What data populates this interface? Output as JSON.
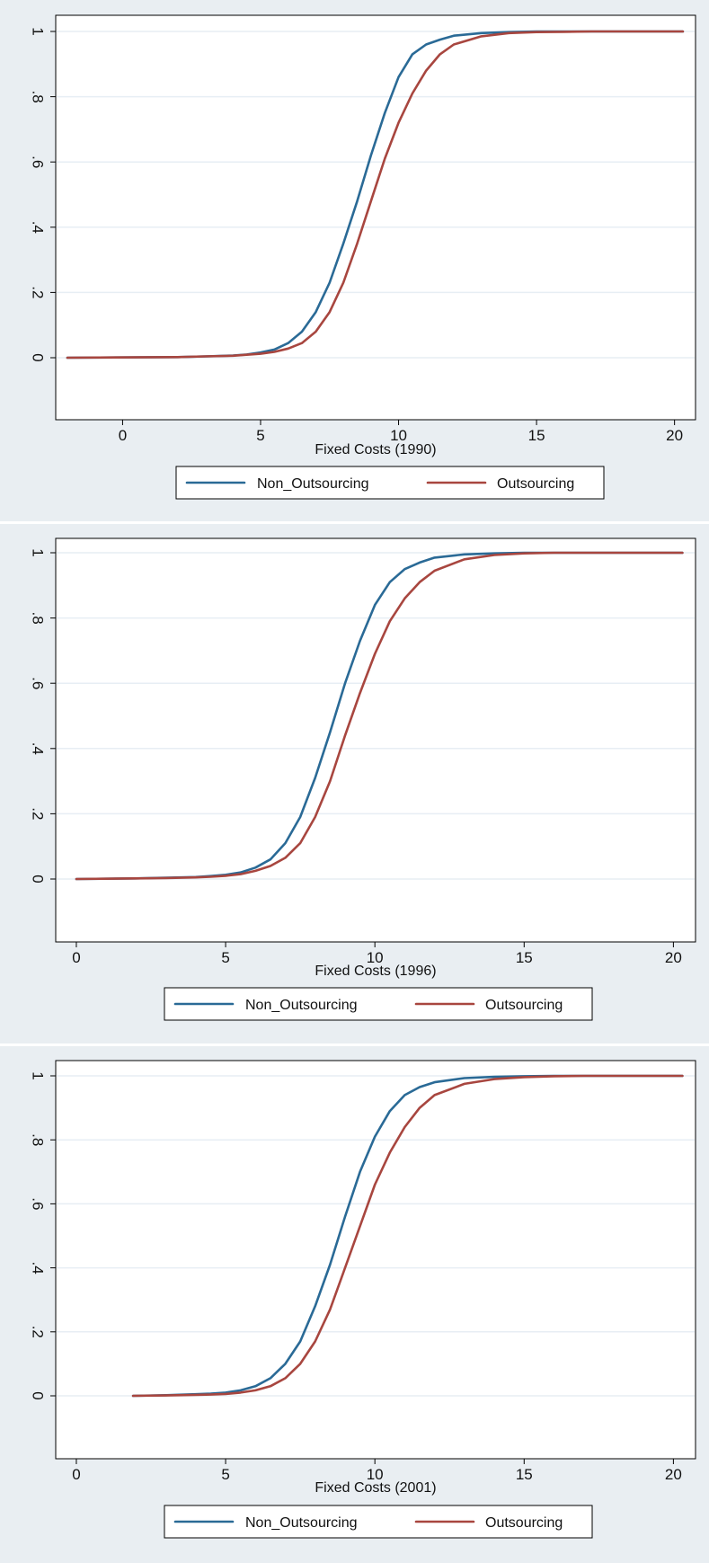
{
  "chart_data": [
    {
      "type": "line",
      "xlabel": "Fixed Costs (1990)",
      "ylabel": "",
      "xlim": [
        -2,
        20.5
      ],
      "ylim": [
        0,
        1
      ],
      "xticks": [
        0,
        5,
        10,
        15,
        20
      ],
      "yticks": [
        0,
        0.2,
        0.4,
        0.6,
        0.8,
        1
      ],
      "ytick_labels": [
        "0",
        ".2",
        ".4",
        ".6",
        ".8",
        "1"
      ],
      "grid": true,
      "legend_position": "bottom",
      "series": [
        {
          "name": "Non_Outsourcing",
          "color": "#2a6a96",
          "x": [
            -2,
            2,
            3,
            4,
            4.5,
            5,
            5.5,
            6,
            6.5,
            7,
            7.5,
            8,
            8.5,
            9,
            9.5,
            10,
            10.5,
            11,
            11.5,
            12,
            13,
            14,
            15,
            20.3
          ],
          "y": [
            0,
            0.002,
            0.004,
            0.007,
            0.01,
            0.016,
            0.025,
            0.045,
            0.08,
            0.14,
            0.23,
            0.35,
            0.48,
            0.62,
            0.75,
            0.86,
            0.93,
            0.96,
            0.975,
            0.987,
            0.995,
            0.998,
            1,
            1
          ]
        },
        {
          "name": "Outsourcing",
          "color": "#a8463f",
          "x": [
            -2,
            2,
            3,
            4,
            4.5,
            5,
            5.5,
            6,
            6.5,
            7,
            7.5,
            8,
            8.5,
            9,
            9.5,
            10,
            10.5,
            11,
            11.5,
            12,
            13,
            14,
            15,
            16,
            17,
            20.3
          ],
          "y": [
            0,
            0.002,
            0.004,
            0.006,
            0.009,
            0.012,
            0.018,
            0.028,
            0.045,
            0.08,
            0.14,
            0.23,
            0.35,
            0.48,
            0.61,
            0.72,
            0.81,
            0.88,
            0.93,
            0.96,
            0.985,
            0.995,
            0.998,
            0.999,
            1,
            1
          ]
        }
      ]
    },
    {
      "type": "line",
      "xlabel": "Fixed Costs (1996)",
      "ylabel": "",
      "xlim": [
        -0.3,
        20.5
      ],
      "ylim": [
        0,
        1
      ],
      "xticks": [
        0,
        5,
        10,
        15,
        20
      ],
      "yticks": [
        0,
        0.2,
        0.4,
        0.6,
        0.8,
        1
      ],
      "ytick_labels": [
        "0",
        ".2",
        ".4",
        ".6",
        ".8",
        "1"
      ],
      "grid": true,
      "legend_position": "bottom",
      "series": [
        {
          "name": "Non_Outsourcing",
          "color": "#2a6a96",
          "x": [
            0,
            2,
            3,
            4,
            4.5,
            5,
            5.5,
            6,
            6.5,
            7,
            7.5,
            8,
            8.5,
            9,
            9.5,
            10,
            10.5,
            11,
            11.5,
            12,
            13,
            14,
            15,
            20.3
          ],
          "y": [
            0,
            0.002,
            0.004,
            0.006,
            0.009,
            0.013,
            0.02,
            0.035,
            0.06,
            0.11,
            0.19,
            0.31,
            0.45,
            0.6,
            0.73,
            0.84,
            0.91,
            0.95,
            0.97,
            0.985,
            0.995,
            0.998,
            1,
            1
          ]
        },
        {
          "name": "Outsourcing",
          "color": "#a8463f",
          "x": [
            0,
            2,
            3,
            4,
            4.5,
            5,
            5.5,
            6,
            6.5,
            7,
            7.5,
            8,
            8.5,
            9,
            9.5,
            10,
            10.5,
            11,
            11.5,
            12,
            13,
            14,
            15,
            16,
            20.3
          ],
          "y": [
            0,
            0.002,
            0.003,
            0.005,
            0.007,
            0.01,
            0.015,
            0.025,
            0.04,
            0.065,
            0.11,
            0.19,
            0.3,
            0.44,
            0.57,
            0.69,
            0.79,
            0.86,
            0.91,
            0.945,
            0.98,
            0.993,
            0.998,
            1,
            1
          ]
        }
      ]
    },
    {
      "type": "line",
      "xlabel": "Fixed Costs (2001)",
      "ylabel": "",
      "xlim": [
        -0.3,
        20.5
      ],
      "ylim": [
        0,
        1
      ],
      "xticks": [
        0,
        5,
        10,
        15,
        20
      ],
      "yticks": [
        0,
        0.2,
        0.4,
        0.6,
        0.8,
        1
      ],
      "ytick_labels": [
        "0",
        ".2",
        ".4",
        ".6",
        ".8",
        "1"
      ],
      "grid": true,
      "legend_position": "bottom",
      "series": [
        {
          "name": "Non_Outsourcing",
          "color": "#2a6a96",
          "x": [
            1.9,
            3,
            4,
            4.5,
            5,
            5.5,
            6,
            6.5,
            7,
            7.5,
            8,
            8.5,
            9,
            9.5,
            10,
            10.5,
            11,
            11.5,
            12,
            13,
            14,
            15,
            16,
            20.3
          ],
          "y": [
            0,
            0.002,
            0.005,
            0.007,
            0.01,
            0.017,
            0.03,
            0.055,
            0.1,
            0.17,
            0.28,
            0.41,
            0.56,
            0.7,
            0.81,
            0.89,
            0.94,
            0.965,
            0.98,
            0.993,
            0.997,
            0.999,
            1,
            1
          ]
        },
        {
          "name": "Outsourcing",
          "color": "#a8463f",
          "x": [
            1.9,
            3,
            4,
            4.5,
            5,
            5.5,
            6,
            6.5,
            7,
            7.5,
            8,
            8.5,
            9,
            9.5,
            10,
            10.5,
            11,
            11.5,
            12,
            13,
            14,
            15,
            16,
            17,
            20.3
          ],
          "y": [
            0,
            0.001,
            0.003,
            0.004,
            0.006,
            0.01,
            0.017,
            0.03,
            0.055,
            0.1,
            0.17,
            0.27,
            0.4,
            0.53,
            0.66,
            0.76,
            0.84,
            0.9,
            0.94,
            0.975,
            0.99,
            0.996,
            0.999,
            1,
            1
          ]
        }
      ]
    }
  ]
}
